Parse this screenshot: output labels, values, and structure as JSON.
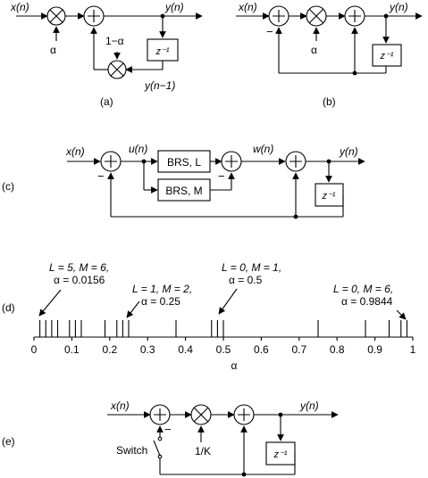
{
  "a": {
    "x": "x(n)",
    "y": "y(n)",
    "yd": "y(n−1)",
    "alpha": "α",
    "one_minus": "1−α",
    "z": "z⁻¹",
    "caption": "(a)"
  },
  "b": {
    "x": "x(n)",
    "y": "y(n)",
    "alpha": "α",
    "z": "z⁻¹",
    "minus": "−",
    "caption": "(b)"
  },
  "c": {
    "x": "x(n)",
    "u": "u(n)",
    "w": "w(n)",
    "y": "y(n)",
    "brs_l": "BRS, L",
    "brs_m": "BRS, M",
    "z": "z⁻¹",
    "minus": "−",
    "caption": "(c)"
  },
  "d": {
    "caption": "(d)",
    "xlabel": "α",
    "ticks": [
      "0",
      "0.1",
      "0.2",
      "0.3",
      "0.4",
      "0.5",
      "0.6",
      "0.7",
      "0.8",
      "0.9",
      "1"
    ],
    "annotations": [
      {
        "l1": "L = 5, M = 6,",
        "l2": "α = 0.0156"
      },
      {
        "l1": "L = 1, M = 2,",
        "l2": "α = 0.25"
      },
      {
        "l1": "L = 0, M = 1,",
        "l2": "α = 0.5"
      },
      {
        "l1": "L = 0, M = 6,",
        "l2": "α = 0.9844"
      }
    ],
    "marks": [
      0.0156,
      0.0312,
      0.0469,
      0.0625,
      0.0938,
      0.1094,
      0.125,
      0.1875,
      0.2188,
      0.2344,
      0.25,
      0.375,
      0.4688,
      0.4844,
      0.5,
      0.75,
      0.875,
      0.9375,
      0.9688,
      0.9844
    ]
  },
  "e": {
    "x": "x(n)",
    "y": "y(n)",
    "k": "1/K",
    "z": "z⁻¹",
    "minus": "−",
    "switch": "Switch",
    "caption": "(e)"
  }
}
